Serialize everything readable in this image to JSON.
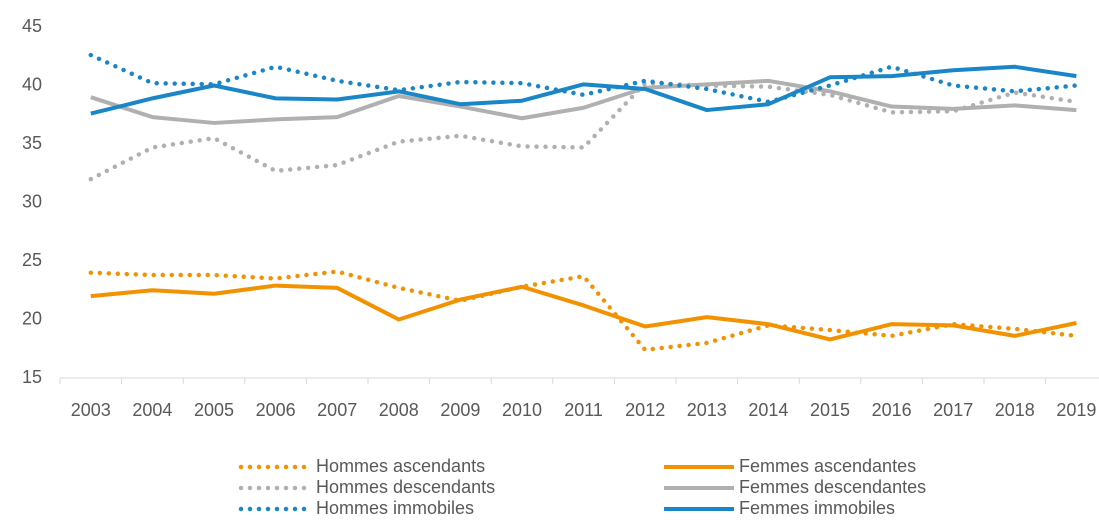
{
  "chart_data": {
    "type": "line",
    "categories": [
      "2003",
      "2004",
      "2005",
      "2006",
      "2007",
      "2008",
      "2009",
      "2010",
      "2011",
      "2012",
      "2013",
      "2014",
      "2015",
      "2016",
      "2017",
      "2018",
      "2019"
    ],
    "series": [
      {
        "name": "Hommes ascendants",
        "color": "#f39200",
        "style": "dotted",
        "values": [
          24.0,
          23.8,
          23.8,
          23.5,
          24.1,
          22.7,
          21.6,
          22.8,
          23.7,
          17.4,
          18.0,
          19.5,
          19.1,
          18.6,
          19.6,
          19.2,
          18.6
        ]
      },
      {
        "name": "Femmes ascendantes",
        "color": "#f39200",
        "style": "solid",
        "values": [
          22.0,
          22.5,
          22.2,
          22.9,
          22.7,
          20.0,
          21.7,
          22.8,
          21.2,
          19.4,
          20.2,
          19.6,
          18.3,
          19.6,
          19.5,
          18.6,
          19.7
        ]
      },
      {
        "name": "Hommes descendants",
        "color": "#b0b0b0",
        "style": "dotted",
        "values": [
          32.0,
          34.7,
          35.5,
          32.7,
          33.2,
          35.2,
          35.7,
          34.8,
          34.7,
          40.2,
          40.0,
          39.9,
          39.2,
          37.7,
          37.8,
          39.4,
          38.6
        ]
      },
      {
        "name": "Femmes descendantes",
        "color": "#b0b0b0",
        "style": "solid",
        "values": [
          39.0,
          37.3,
          36.8,
          37.1,
          37.3,
          39.1,
          38.2,
          37.2,
          38.1,
          39.8,
          40.1,
          40.4,
          39.5,
          38.2,
          38.0,
          38.3,
          37.9
        ]
      },
      {
        "name": "Hommes immobiles",
        "color": "#1a86c8",
        "style": "dotted",
        "values": [
          42.6,
          40.2,
          40.1,
          41.6,
          40.4,
          39.6,
          40.3,
          40.2,
          39.2,
          40.4,
          39.7,
          38.6,
          40.0,
          41.6,
          40.0,
          39.5,
          40.0
        ]
      },
      {
        "name": "Femmes immobiles",
        "color": "#1a86c8",
        "style": "solid",
        "values": [
          37.6,
          38.9,
          40.0,
          38.9,
          38.8,
          39.5,
          38.4,
          38.7,
          40.1,
          39.7,
          37.9,
          38.4,
          40.7,
          40.8,
          41.3,
          41.6,
          40.8
        ]
      }
    ],
    "ylim": [
      15,
      45
    ],
    "yticks": [
      15,
      20,
      25,
      30,
      35,
      40,
      45
    ],
    "grid": false
  }
}
